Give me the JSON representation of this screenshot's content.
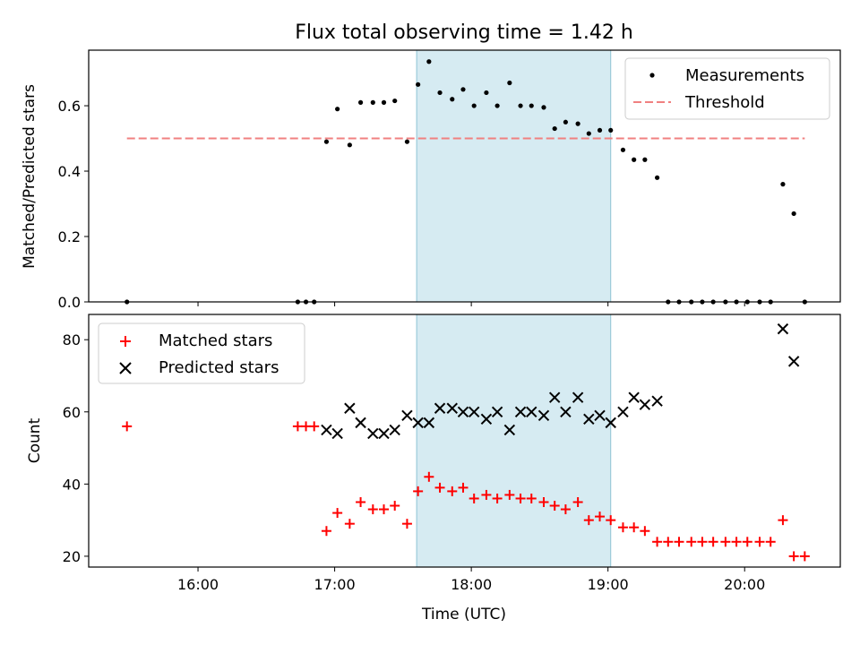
{
  "figure": {
    "title": "Flux total observing time = 1.42 h",
    "xlabel": "Time (UTC)"
  },
  "chart_data": [
    {
      "type": "scatter",
      "ylabel": "Matched/Predicted stars",
      "xlim": [
        15.2,
        20.7
      ],
      "ylim": [
        0,
        0.77
      ],
      "yticks": [
        0.0,
        0.2,
        0.4,
        0.6
      ],
      "ytick_labels": [
        "0.0",
        "0.2",
        "0.4",
        "0.6"
      ],
      "xticks": [
        16,
        17,
        18,
        19,
        20
      ],
      "legend_position": "top-right",
      "shaded_region": {
        "x": [
          17.6,
          19.02
        ],
        "color": "#add8e6"
      },
      "series": [
        {
          "name": "Measurements",
          "marker": "dot",
          "color": "#000000",
          "x": [
            15.48,
            16.73,
            16.79,
            16.85,
            16.94,
            17.02,
            17.11,
            17.19,
            17.28,
            17.36,
            17.44,
            17.53,
            17.61,
            17.69,
            17.77,
            17.86,
            17.94,
            18.02,
            18.11,
            18.19,
            18.28,
            18.36,
            18.44,
            18.53,
            18.61,
            18.69,
            18.78,
            18.86,
            18.94,
            19.02,
            19.11,
            19.19,
            19.27,
            19.36,
            19.44,
            19.52,
            19.61,
            19.69,
            19.77,
            19.86,
            19.94,
            20.02,
            20.11,
            20.19,
            20.28,
            20.36,
            20.44
          ],
          "y": [
            0.0,
            0.0,
            0.0,
            0.0,
            0.49,
            0.59,
            0.48,
            0.61,
            0.61,
            0.61,
            0.615,
            0.49,
            0.665,
            0.735,
            0.64,
            0.62,
            0.65,
            0.6,
            0.64,
            0.6,
            0.67,
            0.6,
            0.6,
            0.595,
            0.53,
            0.55,
            0.545,
            0.515,
            0.525,
            0.525,
            0.465,
            0.435,
            0.435,
            0.38,
            0.0,
            0.0,
            0.0,
            0.0,
            0.0,
            0.0,
            0.0,
            0.0,
            0.0,
            0.0,
            0.36,
            0.27,
            0.0
          ]
        },
        {
          "name": "Threshold",
          "marker": "dashed-line",
          "color": "#f08080",
          "x": [
            15.48,
            20.44
          ],
          "y": [
            0.5,
            0.5
          ]
        }
      ]
    },
    {
      "type": "scatter",
      "ylabel": "Count",
      "xlim": [
        15.2,
        20.7
      ],
      "ylim": [
        17,
        87
      ],
      "yticks": [
        20,
        40,
        60,
        80
      ],
      "ytick_labels": [
        "20",
        "40",
        "60",
        "80"
      ],
      "xticks": [
        16,
        17,
        18,
        19,
        20
      ],
      "xtick_labels": [
        "16:00",
        "17:00",
        "18:00",
        "19:00",
        "20:00"
      ],
      "legend_position": "top-left",
      "shaded_region": {
        "x": [
          17.6,
          19.02
        ],
        "color": "#add8e6"
      },
      "series": [
        {
          "name": "Matched stars",
          "marker": "plus",
          "color": "#ff0000",
          "x": [
            15.48,
            16.73,
            16.79,
            16.85,
            16.94,
            17.02,
            17.11,
            17.19,
            17.28,
            17.36,
            17.44,
            17.53,
            17.61,
            17.69,
            17.77,
            17.86,
            17.94,
            18.02,
            18.11,
            18.19,
            18.28,
            18.36,
            18.44,
            18.53,
            18.61,
            18.69,
            18.78,
            18.86,
            18.94,
            19.02,
            19.11,
            19.19,
            19.27,
            19.36,
            19.44,
            19.52,
            19.61,
            19.69,
            19.77,
            19.86,
            19.94,
            20.02,
            20.11,
            20.19,
            20.28,
            20.36,
            20.44
          ],
          "y": [
            56,
            56,
            56,
            56,
            27,
            32,
            29,
            35,
            33,
            33,
            34,
            29,
            38,
            42,
            39,
            38,
            39,
            36,
            37,
            36,
            37,
            36,
            36,
            35,
            34,
            33,
            35,
            30,
            31,
            30,
            28,
            28,
            27,
            24,
            24,
            24,
            24,
            24,
            24,
            24,
            24,
            24,
            24,
            24,
            30,
            20,
            20
          ]
        },
        {
          "name": "Predicted stars",
          "marker": "x",
          "color": "#000000",
          "x": [
            16.94,
            17.02,
            17.11,
            17.19,
            17.28,
            17.36,
            17.44,
            17.53,
            17.61,
            17.69,
            17.77,
            17.86,
            17.94,
            18.02,
            18.11,
            18.19,
            18.28,
            18.36,
            18.44,
            18.53,
            18.61,
            18.69,
            18.78,
            18.86,
            18.94,
            19.02,
            19.11,
            19.19,
            19.27,
            19.36,
            20.28,
            20.36
          ],
          "y": [
            55,
            54,
            61,
            57,
            54,
            54,
            55,
            59,
            57,
            57,
            61,
            61,
            60,
            60,
            58,
            60,
            55,
            60,
            60,
            59,
            64,
            60,
            64,
            58,
            59,
            57,
            60,
            64,
            62,
            63,
            83,
            74
          ]
        }
      ]
    }
  ]
}
